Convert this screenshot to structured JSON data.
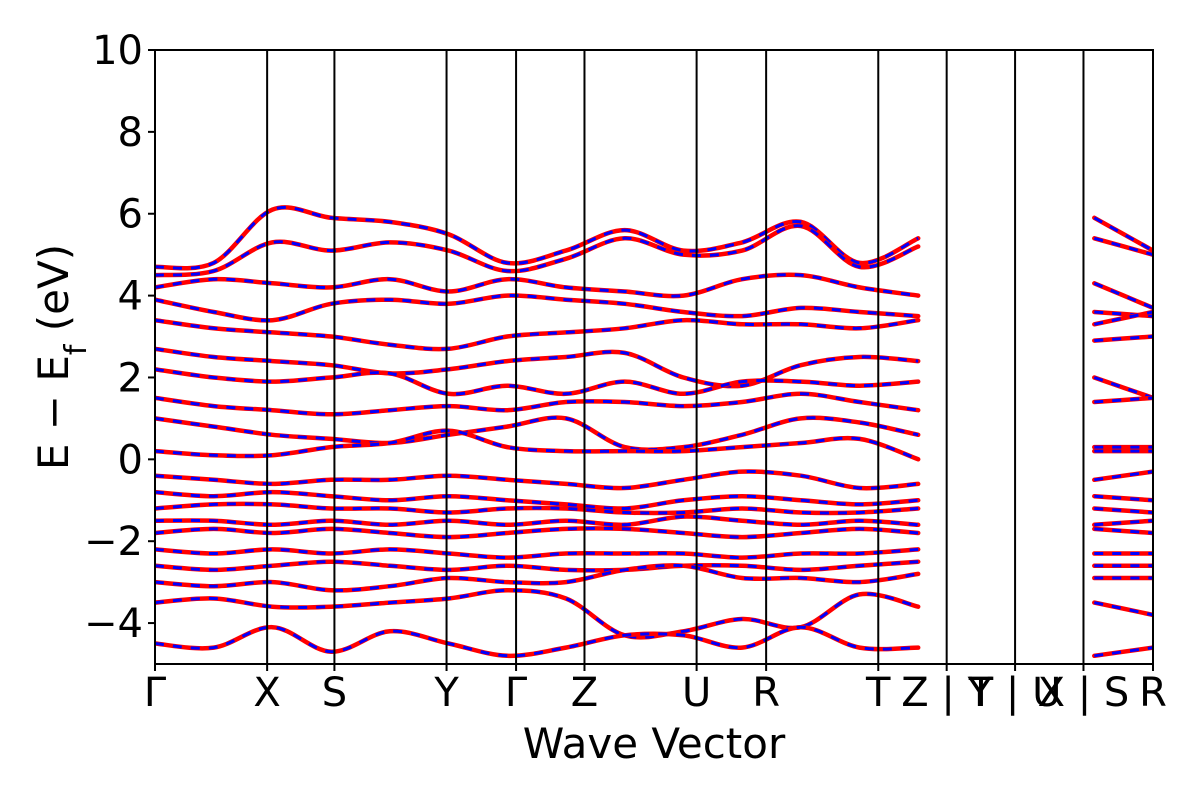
{
  "chart_data": {
    "type": "line",
    "title": "",
    "xlabel": "Wave Vector",
    "ylabel": "E − E_f (eV)",
    "ylabel_parts": {
      "main": "E  −  E",
      "sub": "f",
      "tail": " (eV)"
    },
    "ylim": [
      -5,
      10
    ],
    "yticks": [
      -4,
      -2,
      0,
      2,
      4,
      6,
      8,
      10
    ],
    "ytick_labels": [
      "−4",
      "−2",
      "0",
      "2",
      "4",
      "6",
      "8",
      "10"
    ],
    "grid": false,
    "legend": "none",
    "colors": {
      "spin_up": "#ff0000",
      "spin_down": "#0000ff",
      "kpath_lines": "#000000"
    },
    "kpoint_positions": [
      0,
      1,
      1.6,
      2.6,
      3.22,
      3.83,
      4.83,
      5.45,
      6.45,
      7.06,
      7.67,
      8.28,
      8.9
    ],
    "kpoint_labels": [
      "Γ",
      "X",
      "S",
      "Y",
      "Γ",
      "Z",
      "U",
      "R",
      "T",
      "Z | Y",
      "T | U",
      "X | S",
      "R"
    ],
    "x_range": [
      0,
      8.9
    ],
    "segments": [
      [
        0,
        1
      ],
      [
        1,
        1.6
      ],
      [
        1.6,
        2.6
      ],
      [
        2.6,
        3.22
      ],
      [
        3.22,
        3.83
      ],
      [
        3.83,
        4.83
      ],
      [
        4.83,
        5.45
      ],
      [
        5.45,
        6.45
      ],
      [
        6.45,
        7.06
      ],
      [
        7.06,
        7.67
      ],
      [
        7.67,
        8.28
      ],
      [
        8.28,
        8.9
      ]
    ],
    "series": [
      {
        "values": [
          [
            4.7,
            4.8,
            6.1,
            5.9,
            5.8,
            5.5,
            4.8,
            5.1,
            5.6,
            5.1,
            5.3,
            5.8,
            4.8,
            5.4,
            5.9,
            5.6,
            5.9,
            5.1
          ]
        ]
      },
      {
        "values": [
          [
            4.5,
            4.6,
            5.3,
            5.1,
            5.3,
            5.1,
            4.6,
            4.9,
            5.4,
            5.0,
            5.1,
            5.7,
            4.7,
            5.2,
            5.6,
            5.5,
            5.4,
            5.0
          ]
        ]
      },
      {
        "values": [
          [
            4.2,
            4.4,
            4.3,
            4.2,
            4.4,
            4.1,
            4.4,
            4.2,
            4.1,
            4.0,
            4.4,
            4.5,
            4.2,
            4.0,
            4.1,
            4.2,
            4.3,
            3.7
          ]
        ]
      },
      {
        "values": [
          [
            3.9,
            3.6,
            3.4,
            3.8,
            3.9,
            3.8,
            4.0,
            3.9,
            3.8,
            3.6,
            3.5,
            3.7,
            3.6,
            3.5,
            3.3,
            3.4,
            3.6,
            3.5
          ]
        ]
      },
      {
        "values": [
          [
            3.4,
            3.2,
            3.1,
            3.0,
            2.8,
            2.7,
            3.0,
            3.1,
            3.2,
            3.4,
            3.3,
            3.3,
            3.2,
            3.4,
            3.1,
            3.2,
            3.3,
            3.6
          ]
        ]
      },
      {
        "values": [
          [
            2.7,
            2.5,
            2.4,
            2.3,
            2.1,
            2.2,
            2.4,
            2.5,
            2.6,
            2.0,
            1.8,
            2.3,
            2.5,
            2.4,
            2.6,
            2.8,
            2.9,
            3.0
          ]
        ]
      },
      {
        "values": [
          [
            2.2,
            2.0,
            1.9,
            2.0,
            2.1,
            1.6,
            1.8,
            1.6,
            1.9,
            1.6,
            1.9,
            1.9,
            1.8,
            1.9,
            1.4,
            1.9,
            2.0,
            1.5
          ]
        ]
      },
      {
        "values": [
          [
            1.5,
            1.3,
            1.2,
            1.1,
            1.2,
            1.3,
            1.2,
            1.4,
            1.4,
            1.3,
            1.4,
            1.6,
            1.4,
            1.2,
            1.5,
            1.4,
            1.4,
            1.5
          ]
        ]
      },
      {
        "values": [
          [
            1.0,
            0.8,
            0.6,
            0.5,
            0.4,
            0.6,
            0.8,
            1.0,
            0.3,
            0.3,
            0.6,
            1.0,
            0.9,
            0.6,
            0.3,
            0.7,
            0.3,
            0.3
          ]
        ]
      },
      {
        "values": [
          [
            0.2,
            0.1,
            0.1,
            0.3,
            0.4,
            0.7,
            0.3,
            0.2,
            0.2,
            0.2,
            0.3,
            0.4,
            0.5,
            0.0,
            -0.1,
            0.2,
            0.2,
            0.2
          ]
        ]
      },
      {
        "values": [
          [
            -0.4,
            -0.5,
            -0.6,
            -0.5,
            -0.5,
            -0.4,
            -0.5,
            -0.6,
            -0.7,
            -0.5,
            -0.3,
            -0.4,
            -0.7,
            -0.6,
            -0.8,
            -0.6,
            -0.5,
            -0.3
          ]
        ]
      },
      {
        "values": [
          [
            -0.8,
            -0.9,
            -0.8,
            -0.9,
            -1.0,
            -0.9,
            -1.0,
            -1.1,
            -1.2,
            -1.0,
            -0.9,
            -1.0,
            -1.1,
            -1.0,
            -1.1,
            -1.0,
            -0.9,
            -1.0
          ]
        ]
      },
      {
        "values": [
          [
            -1.2,
            -1.1,
            -1.1,
            -1.2,
            -1.2,
            -1.3,
            -1.2,
            -1.2,
            -1.3,
            -1.3,
            -1.2,
            -1.3,
            -1.3,
            -1.2,
            -1.3,
            -1.3,
            -1.2,
            -1.3
          ]
        ]
      },
      {
        "values": [
          [
            -1.5,
            -1.5,
            -1.6,
            -1.5,
            -1.6,
            -1.5,
            -1.6,
            -1.5,
            -1.6,
            -1.4,
            -1.5,
            -1.6,
            -1.5,
            -1.6,
            -1.6,
            -1.5,
            -1.6,
            -1.5
          ]
        ]
      },
      {
        "values": [
          [
            -1.8,
            -1.7,
            -1.8,
            -1.7,
            -1.8,
            -1.9,
            -1.8,
            -1.7,
            -1.7,
            -1.8,
            -1.9,
            -1.8,
            -1.7,
            -1.8,
            -1.9,
            -1.8,
            -1.7,
            -1.8
          ]
        ]
      },
      {
        "values": [
          [
            -2.2,
            -2.3,
            -2.2,
            -2.3,
            -2.2,
            -2.3,
            -2.4,
            -2.3,
            -2.3,
            -2.3,
            -2.4,
            -2.3,
            -2.3,
            -2.2,
            -2.3,
            -2.2,
            -2.3,
            -2.3
          ]
        ]
      },
      {
        "values": [
          [
            -2.6,
            -2.7,
            -2.6,
            -2.5,
            -2.6,
            -2.7,
            -2.6,
            -2.7,
            -2.7,
            -2.6,
            -2.6,
            -2.7,
            -2.6,
            -2.5,
            -2.6,
            -2.5,
            -2.6,
            -2.6
          ]
        ]
      },
      {
        "values": [
          [
            -3.0,
            -3.1,
            -3.0,
            -3.2,
            -3.1,
            -2.9,
            -3.0,
            -3.0,
            -2.7,
            -2.6,
            -2.9,
            -2.9,
            -3.0,
            -2.8,
            -2.9,
            -2.8,
            -2.9,
            -2.9
          ]
        ]
      },
      {
        "values": [
          [
            -3.5,
            -3.4,
            -3.6,
            -3.6,
            -3.5,
            -3.4,
            -3.2,
            -3.4,
            -4.3,
            -4.2,
            -3.9,
            -4.1,
            -3.3,
            -3.6,
            -4.2,
            -4.0,
            -3.5,
            -3.8
          ]
        ]
      },
      {
        "values": [
          [
            -4.5,
            -4.6,
            -4.1,
            -4.7,
            -4.2,
            -4.5,
            -4.8,
            -4.6,
            -4.3,
            -4.3,
            -4.6,
            -4.1,
            -4.6,
            -4.6,
            -4.3,
            -4.4,
            -4.8,
            -4.6
          ]
        ]
      }
    ]
  }
}
